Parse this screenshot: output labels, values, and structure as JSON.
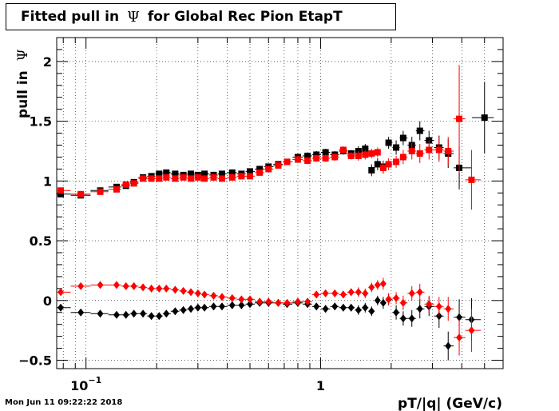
{
  "chart_data": {
    "type": "scatter",
    "title_prefix": "Fitted pull in",
    "title_symbol": "Ψ",
    "title_suffix": "for Global Rec Pion EtapT",
    "xlabel": "pT/|q| (GeV/c)",
    "ylabel_prefix": "pull in",
    "ylabel_symbol": "Ψ",
    "x_scale": "log",
    "xlim": [
      0.075,
      6.0
    ],
    "ylim": [
      -0.57,
      2.2
    ],
    "grid": true,
    "x_tick_labels": [
      {
        "value": 0.1,
        "base": "10",
        "exp": "−1"
      },
      {
        "value": 1,
        "base": "1",
        "exp": ""
      }
    ],
    "y_ticks": [
      -0.5,
      0,
      0.5,
      1,
      1.5,
      2
    ],
    "y_tick_labels": [
      "−0.5",
      "0",
      "0.5",
      "1",
      "1.5",
      "2"
    ],
    "colors": {
      "black": "#000000",
      "red": "#ff0000"
    },
    "series": [
      {
        "color": "black",
        "marker": "square",
        "points": [
          [
            0.078,
            0.89,
            0.02
          ],
          [
            0.095,
            0.88,
            0.02
          ],
          [
            0.115,
            0.92,
            0.02
          ],
          [
            0.135,
            0.95,
            0.02
          ],
          [
            0.148,
            0.96,
            0.02
          ],
          [
            0.16,
            0.99,
            0.02
          ],
          [
            0.175,
            1.03,
            0.02
          ],
          [
            0.19,
            1.04,
            0.02
          ],
          [
            0.205,
            1.06,
            0.02
          ],
          [
            0.22,
            1.07,
            0.02
          ],
          [
            0.24,
            1.06,
            0.02
          ],
          [
            0.26,
            1.05,
            0.02
          ],
          [
            0.28,
            1.06,
            0.02
          ],
          [
            0.3,
            1.05,
            0.02
          ],
          [
            0.32,
            1.06,
            0.02
          ],
          [
            0.35,
            1.05,
            0.02
          ],
          [
            0.38,
            1.06,
            0.02
          ],
          [
            0.42,
            1.07,
            0.02
          ],
          [
            0.46,
            1.06,
            0.02
          ],
          [
            0.5,
            1.08,
            0.02
          ],
          [
            0.55,
            1.1,
            0.02
          ],
          [
            0.6,
            1.12,
            0.02
          ],
          [
            0.66,
            1.14,
            0.02
          ],
          [
            0.72,
            1.16,
            0.02
          ],
          [
            0.8,
            1.2,
            0.03
          ],
          [
            0.88,
            1.21,
            0.03
          ],
          [
            0.96,
            1.22,
            0.03
          ],
          [
            1.05,
            1.24,
            0.03
          ],
          [
            1.15,
            1.22,
            0.03
          ],
          [
            1.25,
            1.25,
            0.03
          ],
          [
            1.35,
            1.23,
            0.03
          ],
          [
            1.45,
            1.25,
            0.04
          ],
          [
            1.55,
            1.27,
            0.04
          ],
          [
            1.65,
            1.09,
            0.05
          ],
          [
            1.75,
            1.14,
            0.05
          ],
          [
            1.85,
            1.12,
            0.05
          ],
          [
            1.95,
            1.32,
            0.05
          ],
          [
            2.1,
            1.28,
            0.06
          ],
          [
            2.25,
            1.36,
            0.06
          ],
          [
            2.45,
            1.3,
            0.07
          ],
          [
            2.65,
            1.42,
            0.08
          ],
          [
            2.9,
            1.34,
            0.08
          ],
          [
            3.2,
            1.28,
            0.1
          ],
          [
            3.5,
            1.23,
            0.12
          ],
          [
            3.9,
            1.11,
            0.18
          ],
          [
            5.0,
            1.53,
            0.3
          ]
        ]
      },
      {
        "color": "red",
        "marker": "square",
        "points": [
          [
            0.078,
            0.92,
            0.02
          ],
          [
            0.095,
            0.89,
            0.02
          ],
          [
            0.115,
            0.91,
            0.02
          ],
          [
            0.135,
            0.93,
            0.02
          ],
          [
            0.148,
            0.97,
            0.02
          ],
          [
            0.16,
            0.98,
            0.02
          ],
          [
            0.175,
            1.02,
            0.02
          ],
          [
            0.19,
            1.02,
            0.02
          ],
          [
            0.205,
            1.02,
            0.02
          ],
          [
            0.22,
            1.03,
            0.02
          ],
          [
            0.24,
            1.02,
            0.02
          ],
          [
            0.26,
            1.03,
            0.02
          ],
          [
            0.28,
            1.02,
            0.02
          ],
          [
            0.3,
            1.03,
            0.02
          ],
          [
            0.32,
            1.02,
            0.02
          ],
          [
            0.35,
            1.03,
            0.02
          ],
          [
            0.38,
            1.02,
            0.02
          ],
          [
            0.42,
            1.03,
            0.02
          ],
          [
            0.46,
            1.04,
            0.02
          ],
          [
            0.5,
            1.04,
            0.02
          ],
          [
            0.55,
            1.07,
            0.02
          ],
          [
            0.6,
            1.1,
            0.02
          ],
          [
            0.66,
            1.13,
            0.02
          ],
          [
            0.72,
            1.16,
            0.02
          ],
          [
            0.8,
            1.18,
            0.03
          ],
          [
            0.88,
            1.17,
            0.03
          ],
          [
            0.96,
            1.19,
            0.03
          ],
          [
            1.05,
            1.19,
            0.03
          ],
          [
            1.15,
            1.2,
            0.03
          ],
          [
            1.25,
            1.26,
            0.03
          ],
          [
            1.35,
            1.21,
            0.03
          ],
          [
            1.45,
            1.21,
            0.04
          ],
          [
            1.55,
            1.22,
            0.04
          ],
          [
            1.65,
            1.23,
            0.04
          ],
          [
            1.75,
            1.24,
            0.04
          ],
          [
            1.85,
            1.11,
            0.05
          ],
          [
            1.95,
            1.14,
            0.05
          ],
          [
            2.1,
            1.16,
            0.05
          ],
          [
            2.25,
            1.2,
            0.06
          ],
          [
            2.45,
            1.25,
            0.07
          ],
          [
            2.65,
            1.23,
            0.08
          ],
          [
            2.9,
            1.26,
            0.08
          ],
          [
            3.2,
            1.26,
            0.1
          ],
          [
            3.5,
            1.25,
            0.12
          ],
          [
            3.9,
            1.52,
            0.45
          ],
          [
            4.4,
            1.01,
            0.25
          ]
        ]
      },
      {
        "color": "black",
        "marker": "diamond",
        "points": [
          [
            0.078,
            -0.06,
            0.03
          ],
          [
            0.095,
            -0.1,
            0.02
          ],
          [
            0.115,
            -0.11,
            0.02
          ],
          [
            0.135,
            -0.12,
            0.02
          ],
          [
            0.148,
            -0.12,
            0.02
          ],
          [
            0.16,
            -0.11,
            0.02
          ],
          [
            0.175,
            -0.11,
            0.02
          ],
          [
            0.19,
            -0.13,
            0.02
          ],
          [
            0.205,
            -0.13,
            0.02
          ],
          [
            0.22,
            -0.11,
            0.02
          ],
          [
            0.24,
            -0.09,
            0.02
          ],
          [
            0.26,
            -0.08,
            0.02
          ],
          [
            0.28,
            -0.07,
            0.02
          ],
          [
            0.3,
            -0.06,
            0.02
          ],
          [
            0.32,
            -0.06,
            0.02
          ],
          [
            0.35,
            -0.05,
            0.02
          ],
          [
            0.38,
            -0.05,
            0.02
          ],
          [
            0.42,
            -0.04,
            0.02
          ],
          [
            0.46,
            -0.04,
            0.02
          ],
          [
            0.5,
            -0.03,
            0.02
          ],
          [
            0.55,
            -0.02,
            0.02
          ],
          [
            0.6,
            -0.02,
            0.02
          ],
          [
            0.66,
            -0.02,
            0.02
          ],
          [
            0.72,
            -0.03,
            0.02
          ],
          [
            0.8,
            -0.02,
            0.02
          ],
          [
            0.88,
            -0.03,
            0.02
          ],
          [
            0.96,
            -0.05,
            0.03
          ],
          [
            1.05,
            -0.07,
            0.03
          ],
          [
            1.15,
            -0.05,
            0.03
          ],
          [
            1.25,
            -0.06,
            0.03
          ],
          [
            1.35,
            -0.06,
            0.03
          ],
          [
            1.45,
            -0.08,
            0.04
          ],
          [
            1.55,
            -0.06,
            0.04
          ],
          [
            1.65,
            -0.09,
            0.04
          ],
          [
            1.75,
            0.0,
            0.04
          ],
          [
            1.85,
            -0.02,
            0.05
          ],
          [
            1.95,
            0.01,
            0.05
          ],
          [
            2.1,
            -0.1,
            0.06
          ],
          [
            2.25,
            -0.15,
            0.06
          ],
          [
            2.45,
            -0.15,
            0.07
          ],
          [
            2.65,
            -0.07,
            0.08
          ],
          [
            2.9,
            -0.05,
            0.08
          ],
          [
            3.2,
            -0.13,
            0.1
          ],
          [
            3.5,
            -0.38,
            0.12
          ],
          [
            3.9,
            -0.14,
            0.15
          ],
          [
            4.4,
            -0.16,
            0.18
          ]
        ]
      },
      {
        "color": "red",
        "marker": "diamond",
        "points": [
          [
            0.078,
            0.07,
            0.03
          ],
          [
            0.095,
            0.12,
            0.02
          ],
          [
            0.115,
            0.13,
            0.02
          ],
          [
            0.135,
            0.13,
            0.02
          ],
          [
            0.148,
            0.12,
            0.02
          ],
          [
            0.16,
            0.12,
            0.02
          ],
          [
            0.175,
            0.11,
            0.02
          ],
          [
            0.19,
            0.1,
            0.02
          ],
          [
            0.205,
            0.1,
            0.02
          ],
          [
            0.22,
            0.1,
            0.02
          ],
          [
            0.24,
            0.09,
            0.02
          ],
          [
            0.26,
            0.08,
            0.02
          ],
          [
            0.28,
            0.07,
            0.02
          ],
          [
            0.3,
            0.06,
            0.02
          ],
          [
            0.32,
            0.05,
            0.02
          ],
          [
            0.35,
            0.04,
            0.02
          ],
          [
            0.38,
            0.03,
            0.02
          ],
          [
            0.42,
            0.02,
            0.02
          ],
          [
            0.46,
            0.01,
            0.02
          ],
          [
            0.5,
            0.01,
            0.02
          ],
          [
            0.55,
            -0.01,
            0.02
          ],
          [
            0.6,
            -0.01,
            0.02
          ],
          [
            0.66,
            -0.02,
            0.02
          ],
          [
            0.72,
            -0.02,
            0.02
          ],
          [
            0.8,
            -0.01,
            0.02
          ],
          [
            0.88,
            -0.01,
            0.02
          ],
          [
            0.96,
            0.05,
            0.03
          ],
          [
            1.05,
            0.06,
            0.03
          ],
          [
            1.15,
            0.06,
            0.03
          ],
          [
            1.25,
            0.05,
            0.03
          ],
          [
            1.35,
            0.07,
            0.03
          ],
          [
            1.45,
            0.07,
            0.04
          ],
          [
            1.55,
            0.06,
            0.04
          ],
          [
            1.65,
            0.11,
            0.04
          ],
          [
            1.75,
            0.13,
            0.04
          ],
          [
            1.85,
            0.14,
            0.05
          ],
          [
            1.95,
            0.01,
            0.05
          ],
          [
            2.1,
            0.02,
            0.05
          ],
          [
            2.25,
            -0.02,
            0.06
          ],
          [
            2.45,
            0.06,
            0.06
          ],
          [
            2.65,
            0.07,
            0.07
          ],
          [
            2.9,
            -0.03,
            0.07
          ],
          [
            3.2,
            -0.05,
            0.08
          ],
          [
            3.5,
            -0.07,
            0.1
          ],
          [
            3.9,
            -0.31,
            0.15
          ],
          [
            4.4,
            -0.25,
            0.18
          ]
        ]
      }
    ]
  },
  "footer": {
    "datestamp": "Mon Jun 11 09:22:22 2018"
  }
}
